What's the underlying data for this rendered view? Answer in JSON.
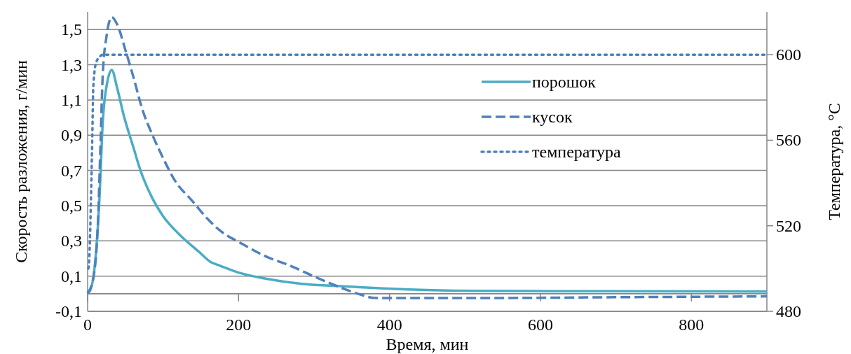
{
  "chart_data": {
    "type": "line",
    "xlabel": "Время, мин",
    "ylabel": "Скорость разложения, г/мин",
    "y2label": "Температура, °C",
    "xlim": [
      0,
      900
    ],
    "xticks": [
      0,
      200,
      400,
      600,
      800
    ],
    "ylim": [
      -0.1,
      1.6
    ],
    "yticks": [
      {
        "value": -0.1,
        "label": "-0,1"
      },
      {
        "value": 0,
        "label": null
      },
      {
        "value": 0.1,
        "label": "0,1"
      },
      {
        "value": 0.3,
        "label": "0,3"
      },
      {
        "value": 0.5,
        "label": "0,5"
      },
      {
        "value": 0.7,
        "label": "0,7"
      },
      {
        "value": 0.9,
        "label": "0,9"
      },
      {
        "value": 1.1,
        "label": "1,1"
      },
      {
        "value": 1.3,
        "label": "1,3"
      },
      {
        "value": 1.5,
        "label": "1,5"
      }
    ],
    "y2lim": [
      480,
      620
    ],
    "y2ticks": [
      480,
      520,
      560,
      600
    ],
    "grid": "y",
    "legend": "top right",
    "series": [
      {
        "name": "порошок",
        "color": "#4bacc6",
        "line_style": "solid",
        "x": [
          0,
          2,
          9,
          16,
          20,
          26,
          32,
          39,
          48,
          60,
          70,
          86,
          100,
          123,
          147,
          163,
          175,
          200,
          237,
          284,
          330,
          392,
          516,
          700,
          900
        ],
        "values": [
          0.02,
          0.01,
          0.14,
          0.57,
          0.97,
          1.2,
          1.27,
          1.17,
          1.01,
          0.84,
          0.7,
          0.54,
          0.44,
          0.33,
          0.24,
          0.18,
          0.16,
          0.12,
          0.085,
          0.056,
          0.044,
          0.03,
          0.016,
          0.014,
          0.012
        ]
      },
      {
        "name": "кусок",
        "color": "#4f81bd",
        "line_style": "dashed",
        "x": [
          0,
          8,
          14,
          17,
          20,
          25,
          32,
          39,
          51,
          60,
          73,
          86,
          100,
          116,
          138,
          160,
          175,
          206,
          237,
          268,
          299,
          330,
          361,
          380,
          500,
          700,
          900
        ],
        "values": [
          0,
          0.1,
          0.44,
          0.84,
          1.24,
          1.46,
          1.57,
          1.53,
          1.37,
          1.24,
          1.04,
          0.9,
          0.77,
          0.64,
          0.53,
          0.42,
          0.36,
          0.28,
          0.21,
          0.16,
          0.1,
          0.044,
          -0.004,
          -0.024,
          -0.025,
          -0.02,
          -0.015
        ]
      },
      {
        "name": "температура",
        "color": "#4f81bd",
        "line_style": "dotted",
        "axis": "y2",
        "x": [
          1,
          2,
          4.6,
          6.5,
          7.4,
          11,
          16,
          20,
          900
        ],
        "values": [
          500,
          503,
          535,
          567,
          584,
          596,
          599,
          600,
          600
        ]
      }
    ]
  }
}
